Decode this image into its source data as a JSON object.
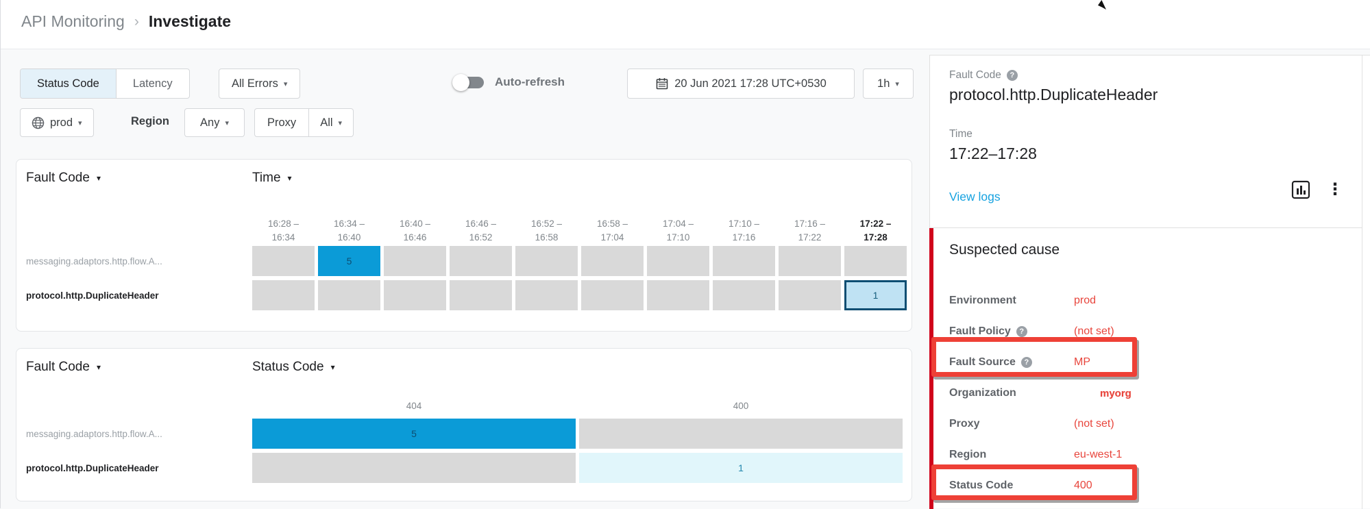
{
  "breadcrumb": {
    "section": "API Monitoring",
    "separator": "›",
    "page": "Investigate"
  },
  "toolbar": {
    "metric_tabs": [
      {
        "label": "Status Code",
        "selected": true
      },
      {
        "label": "Latency",
        "selected": false
      }
    ],
    "errors_filter_label": "All Errors",
    "auto_refresh_label": "Auto-refresh",
    "auto_refresh_enabled": false,
    "date_range_value": "20 Jun 2021 17:28 UTC+0530",
    "interval_value": "1h",
    "environment_value": "prod",
    "region_label": "Region",
    "region_value": "Any",
    "proxy_label": "Proxy",
    "proxy_value": "All"
  },
  "time_matrix": {
    "row_dim_label": "Fault Code",
    "col_dim_label": "Time",
    "columns": [
      {
        "line1": "16:28 –",
        "line2": "16:34",
        "emphasis": false
      },
      {
        "line1": "16:34 –",
        "line2": "16:40",
        "emphasis": false
      },
      {
        "line1": "16:40 –",
        "line2": "16:46",
        "emphasis": false
      },
      {
        "line1": "16:46 –",
        "line2": "16:52",
        "emphasis": false
      },
      {
        "line1": "16:52 –",
        "line2": "16:58",
        "emphasis": false
      },
      {
        "line1": "16:58 –",
        "line2": "17:04",
        "emphasis": false
      },
      {
        "line1": "17:04 –",
        "line2": "17:10",
        "emphasis": false
      },
      {
        "line1": "17:10 –",
        "line2": "17:16",
        "emphasis": false
      },
      {
        "line1": "17:16 –",
        "line2": "17:22",
        "emphasis": false
      },
      {
        "line1": "17:22 –",
        "line2": "17:28",
        "emphasis": true
      }
    ],
    "rows": [
      {
        "label": "messaging.adaptors.http.flow.A...",
        "bold": false,
        "cells": [
          {
            "value": "",
            "variant": "empty"
          },
          {
            "value": "5",
            "variant": "high"
          },
          {
            "value": "",
            "variant": "empty"
          },
          {
            "value": "",
            "variant": "empty"
          },
          {
            "value": "",
            "variant": "empty"
          },
          {
            "value": "",
            "variant": "empty"
          },
          {
            "value": "",
            "variant": "empty"
          },
          {
            "value": "",
            "variant": "empty"
          },
          {
            "value": "",
            "variant": "empty"
          },
          {
            "value": "",
            "variant": "empty"
          }
        ]
      },
      {
        "label": "protocol.http.DuplicateHeader",
        "bold": true,
        "cells": [
          {
            "value": "",
            "variant": "empty"
          },
          {
            "value": "",
            "variant": "empty"
          },
          {
            "value": "",
            "variant": "empty"
          },
          {
            "value": "",
            "variant": "empty"
          },
          {
            "value": "",
            "variant": "empty"
          },
          {
            "value": "",
            "variant": "empty"
          },
          {
            "value": "",
            "variant": "empty"
          },
          {
            "value": "",
            "variant": "empty"
          },
          {
            "value": "",
            "variant": "empty"
          },
          {
            "value": "1",
            "variant": "selectedCell"
          }
        ]
      }
    ]
  },
  "status_matrix": {
    "row_dim_label": "Fault Code",
    "col_dim_label": "Status Code",
    "columns": [
      {
        "line1": "404",
        "line2": "",
        "emphasis": false
      },
      {
        "line1": "400",
        "line2": "",
        "emphasis": false
      }
    ],
    "rows": [
      {
        "label": "messaging.adaptors.http.flow.A...",
        "bold": false,
        "cells": [
          {
            "value": "5",
            "variant": "high"
          },
          {
            "value": "",
            "variant": "empty"
          }
        ]
      },
      {
        "label": "protocol.http.DuplicateHeader",
        "bold": true,
        "cells": [
          {
            "value": "",
            "variant": "empty"
          },
          {
            "value": "1",
            "variant": "low"
          }
        ]
      }
    ]
  },
  "detail_panel": {
    "fault_code_label": "Fault Code",
    "fault_code_value": "protocol.http.DuplicateHeader",
    "time_label": "Time",
    "time_value": "17:22–17:28",
    "view_logs_label": "View logs",
    "suspected_cause": {
      "title": "Suspected cause",
      "rows": [
        {
          "label": "Environment",
          "help": false,
          "value": "prod",
          "boxed": false,
          "emphasis": false
        },
        {
          "label": "Fault Policy",
          "help": true,
          "value": "(not set)",
          "boxed": false,
          "emphasis": false
        },
        {
          "label": "Fault Source",
          "help": true,
          "value": "MP",
          "boxed": true,
          "emphasis": false
        },
        {
          "label": "Organization",
          "help": false,
          "value": "myorg",
          "boxed": false,
          "emphasis": true
        },
        {
          "label": "Proxy",
          "help": false,
          "value": "(not set)",
          "boxed": false,
          "emphasis": false
        },
        {
          "label": "Region",
          "help": false,
          "value": "eu-west-1",
          "boxed": false,
          "emphasis": false
        },
        {
          "label": "Status Code",
          "help": false,
          "value": "400",
          "boxed": true,
          "emphasis": false
        }
      ]
    }
  },
  "icons": {
    "caret": "▾",
    "breadcrumb_separator": "›",
    "kebab": "⋮",
    "help": "?"
  },
  "colors": {
    "accent_blue": "#0b9bd7",
    "cell_gray": "#d9d9d9",
    "selected_cell_fill": "#bfe2f3",
    "selected_cell_border": "#0d4e72",
    "low_cell_fill": "#e1f6fb",
    "value_red": "#e8453c",
    "annotation_red": "#ee4036",
    "side_bar_red": "#d0021b",
    "link_blue": "#16a2e0",
    "tab_selected_bg": "#e4f1f9"
  }
}
